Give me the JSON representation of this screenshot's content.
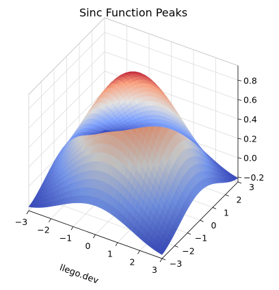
{
  "chart_data": {
    "type": "surface",
    "title": "Sinc Function Peaks",
    "function": "sin(r)/r, r = sqrt(x^2 + y^2)",
    "xlabel": "llego.dev",
    "ylabel": "",
    "zlabel": "",
    "xlim": [
      -3,
      3
    ],
    "ylim": [
      -3,
      3
    ],
    "zlim": [
      -0.2,
      0.9
    ],
    "x_ticks": [
      "−3",
      "−2",
      "−1",
      "0",
      "1",
      "2",
      "3"
    ],
    "y_ticks": [
      "−3",
      "−2",
      "−1",
      "0",
      "1",
      "2",
      "3"
    ],
    "z_ticks": [
      "−0.2",
      "0.0",
      "0.2",
      "0.4",
      "0.6",
      "0.8"
    ],
    "colormap": "coolwarm",
    "peak_value": 1.0,
    "grid": true
  }
}
